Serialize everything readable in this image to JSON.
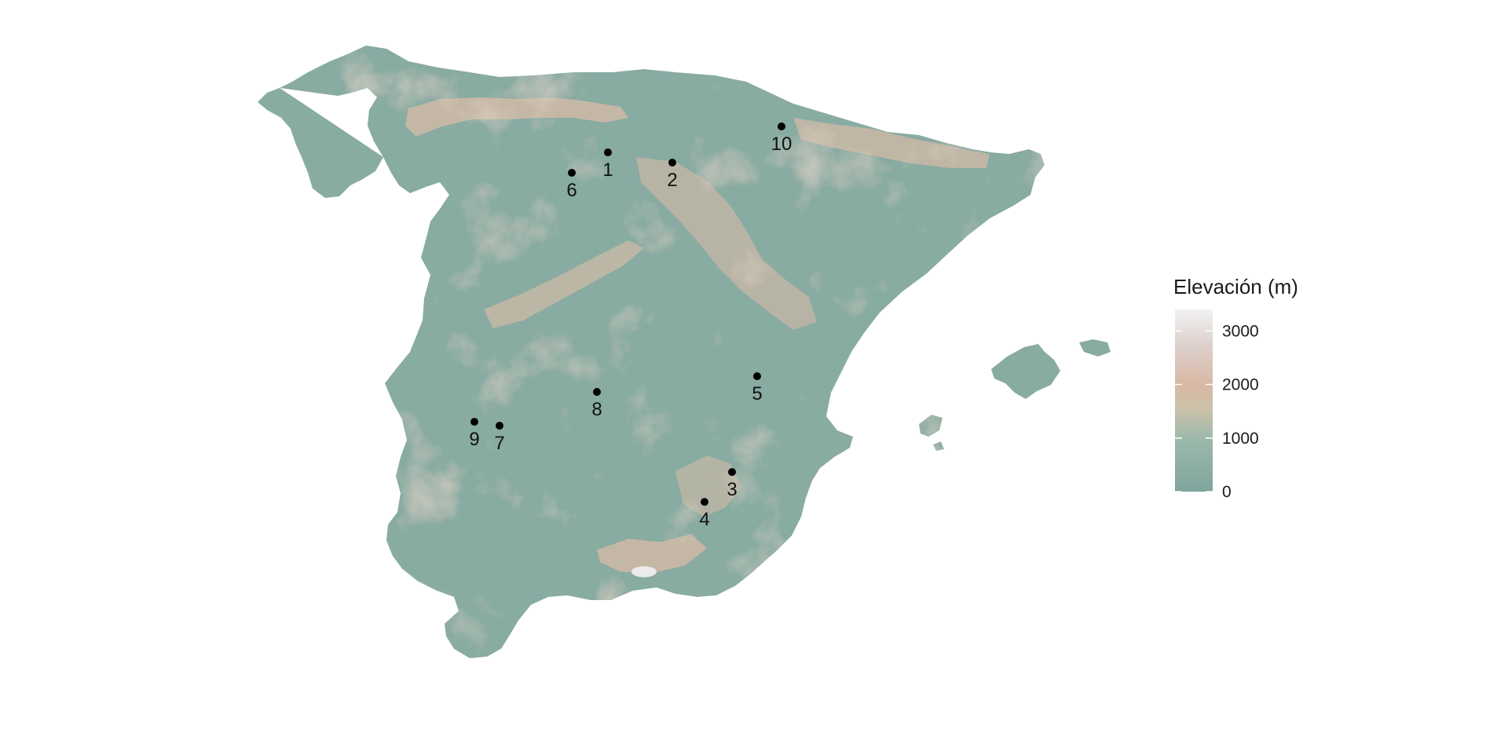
{
  "map": {
    "region": "Iberian Peninsula and Balearic Islands",
    "palette": {
      "low": "#7fa59d",
      "mid": "#9cb9ab",
      "high": "#d9b8a4",
      "peak": "#eeeeee"
    },
    "sites": [
      {
        "id": "1",
        "label": "1"
      },
      {
        "id": "2",
        "label": "2"
      },
      {
        "id": "3",
        "label": "3"
      },
      {
        "id": "4",
        "label": "4"
      },
      {
        "id": "5",
        "label": "5"
      },
      {
        "id": "6",
        "label": "6"
      },
      {
        "id": "7",
        "label": "7"
      },
      {
        "id": "8",
        "label": "8"
      },
      {
        "id": "9",
        "label": "9"
      },
      {
        "id": "10",
        "label": "10"
      }
    ]
  },
  "legend": {
    "title": "Elevación (m)",
    "ticks": [
      {
        "value": 3000,
        "label": "3000"
      },
      {
        "value": 2000,
        "label": "2000"
      },
      {
        "value": 1000,
        "label": "1000"
      },
      {
        "value": 0,
        "label": "0"
      }
    ],
    "min": 0,
    "max": 3400
  }
}
